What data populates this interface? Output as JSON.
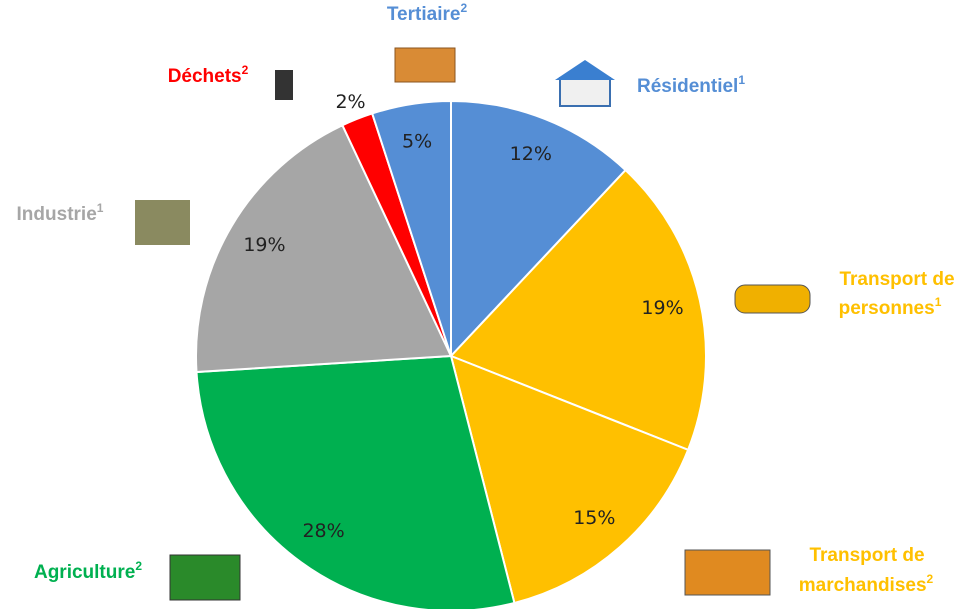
{
  "chart_data": {
    "type": "pie",
    "categories": [
      [
        "Résidentiel"
      ],
      [
        "Transport de",
        "personnes"
      ],
      [
        "Transport de",
        "marchandises"
      ],
      [
        "Agriculture"
      ],
      [
        "Industrie"
      ],
      [
        "Déchets"
      ],
      [
        "Tertiaire"
      ]
    ],
    "notes": [
      "1",
      "1",
      "2",
      "2",
      "1",
      "2",
      "2"
    ],
    "values": [
      12,
      19,
      15,
      28,
      19,
      2,
      5
    ],
    "value_labels": [
      "12%",
      "19%",
      "15%",
      "28%",
      "19%",
      "2%",
      "5%"
    ],
    "colors": [
      "#558ed5",
      "#ffc000",
      "#ffc000",
      "#00b050",
      "#a6a6a6",
      "#ff0000",
      "#558ed5"
    ]
  }
}
